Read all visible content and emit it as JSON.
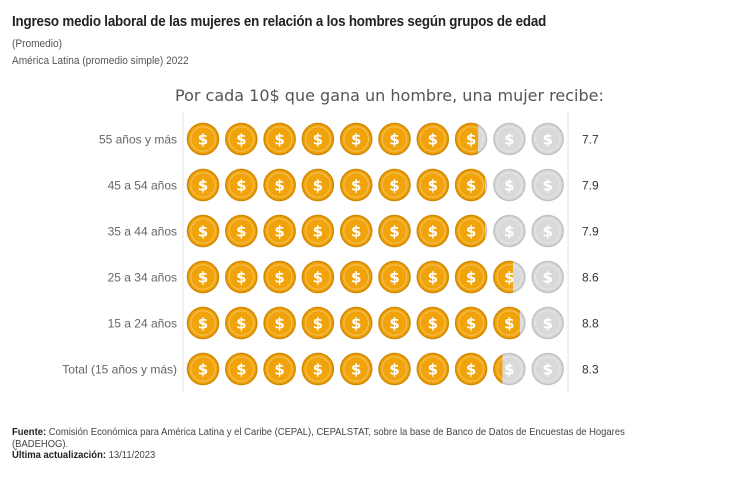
{
  "header": {
    "title": "Ingreso medio laboral de las mujeres en relación a los hombres según grupos de edad",
    "subtitle": "(Promedio)",
    "region": "América Latina (promedio simple) 2022"
  },
  "chart_data": {
    "type": "pictogram",
    "title": "Por cada 10$ que gana un hombre, una mujer recibe:",
    "icon": "dollar-coin-icon",
    "total_icons": 10,
    "categories": [
      "55 años y más",
      "45 a 54 años",
      "35 a 44 años",
      "25 a 34 años",
      "15 a 24 años",
      "Total (15 años y más)"
    ],
    "values": [
      7.7,
      7.9,
      7.9,
      8.6,
      8.8,
      8.3
    ],
    "value_labels": [
      "7.7",
      "7.9",
      "7.9",
      "8.6",
      "8.8",
      "8.3"
    ],
    "colors": {
      "filled": "#f0a30a",
      "filled_edge": "#d48a00",
      "empty": "#d9d9d9",
      "empty_edge": "#c2c2c2"
    }
  },
  "footer": {
    "source_label": "Fuente:",
    "source_text": "Comisión Económica para América Latina y el Caribe (CEPAL), CEPALSTAT, sobre la base de Banco de Datos de Encuestas de Hogares (BADEHOG).",
    "updated_label": "Última actualización:",
    "updated_text": "13/11/2023"
  }
}
